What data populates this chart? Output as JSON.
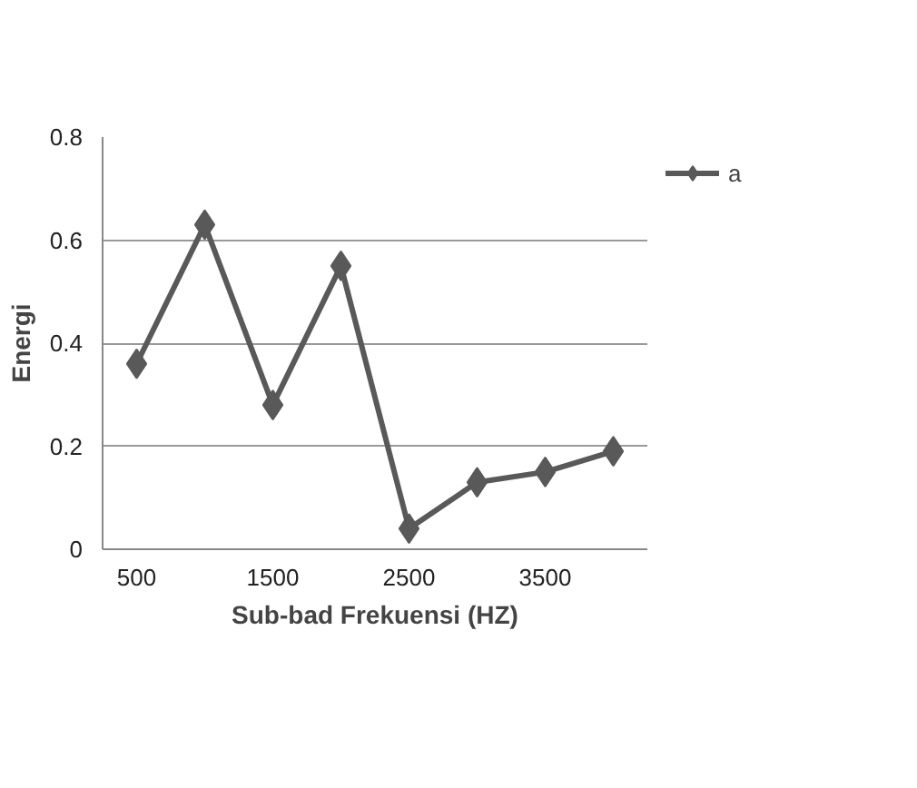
{
  "chart_data": {
    "type": "line",
    "xlabel": "Sub-bad Frekuensi (HZ)",
    "ylabel": "Energi",
    "categories": [
      "500",
      null,
      "1500",
      null,
      "2500",
      null,
      "3500",
      null
    ],
    "series": [
      {
        "name": "a",
        "color": "#595959",
        "values": [
          0.36,
          0.63,
          0.28,
          0.55,
          0.04,
          0.13,
          0.15,
          0.19
        ]
      }
    ],
    "ylim": [
      0,
      0.8
    ],
    "yticks": [
      0,
      0.2,
      0.4,
      0.6,
      0.8
    ],
    "grid": "y",
    "legend": "top right",
    "marker": "diamond",
    "line_style": "solid"
  }
}
